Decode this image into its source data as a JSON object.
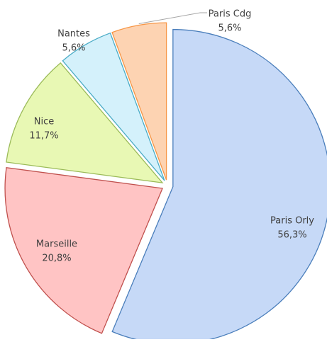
{
  "chart_data": {
    "type": "pie",
    "categories": [
      "Paris Orly",
      "Marseille",
      "Nice",
      "Nantes",
      "Paris Cdg"
    ],
    "values": [
      56.3,
      20.8,
      11.7,
      5.6,
      5.6
    ],
    "value_labels": [
      "56,3%",
      "20,8%",
      "11,7%",
      "5,6%",
      "5,6%"
    ],
    "colors": [
      "#c6d9f7",
      "#ffc4c4",
      "#e8f8b4",
      "#d4f1fb",
      "#fdd3b2"
    ],
    "edge_colors": [
      "#4a7ebb",
      "#c0504d",
      "#9bbb59",
      "#4bacc6",
      "#f79646"
    ]
  }
}
